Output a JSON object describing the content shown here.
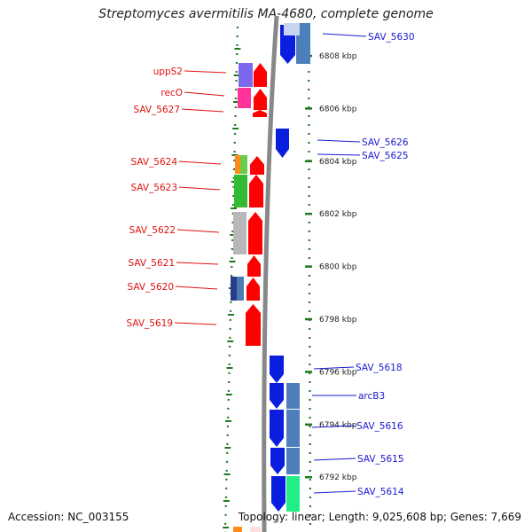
{
  "title": "Streptomyces avermitilis MA-4680, complete genome",
  "footer": {
    "accession": "Accession: NC_003155",
    "summary": "Topology: linear; Length: 9,025,608 bp; Genes: 7,669"
  },
  "colors": {
    "forward_label": "#e01010",
    "reverse_label": "#1a1ad0",
    "forward_gene": "#ff0000",
    "reverse_gene": "#0a1ee0",
    "tick_green": "#207a20",
    "backbone": "#888888",
    "kbp_tick": "#207a20"
  },
  "ruler": {
    "unit": "kbp",
    "ticks": [
      {
        "label": "6808 kbp",
        "kbp": 6808
      },
      {
        "label": "6806 kbp",
        "kbp": 6806
      },
      {
        "label": "6804 kbp",
        "kbp": 6804
      },
      {
        "label": "6802 kbp",
        "kbp": 6802
      },
      {
        "label": "6800 kbp",
        "kbp": 6800
      },
      {
        "label": "6798 kbp",
        "kbp": 6798
      },
      {
        "label": "6796 kbp",
        "kbp": 6796
      },
      {
        "label": "6794 kbp",
        "kbp": 6794
      },
      {
        "label": "6792 kbp",
        "kbp": 6792
      }
    ]
  },
  "forward_labels": [
    {
      "id": "uppS2",
      "text": "uppS2"
    },
    {
      "id": "recO",
      "text": "recO"
    },
    {
      "id": "SAV_5627",
      "text": "SAV_5627"
    },
    {
      "id": "SAV_5624",
      "text": "SAV_5624"
    },
    {
      "id": "SAV_5623",
      "text": "SAV_5623"
    },
    {
      "id": "SAV_5622",
      "text": "SAV_5622"
    },
    {
      "id": "SAV_5621",
      "text": "SAV_5621"
    },
    {
      "id": "SAV_5620",
      "text": "SAV_5620"
    },
    {
      "id": "SAV_5619",
      "text": "SAV_5619"
    }
  ],
  "reverse_labels": [
    {
      "id": "SAV_5630",
      "text": "SAV_5630"
    },
    {
      "id": "SAV_5626",
      "text": "SAV_5626"
    },
    {
      "id": "SAV_5625",
      "text": "SAV_5625"
    },
    {
      "id": "SAV_5618",
      "text": "SAV_5618"
    },
    {
      "id": "arcB3",
      "text": "arcB3"
    },
    {
      "id": "SAV_5616",
      "text": "SAV_5616"
    },
    {
      "id": "SAV_5615",
      "text": "SAV_5615"
    },
    {
      "id": "SAV_5614",
      "text": "SAV_5614"
    }
  ]
}
